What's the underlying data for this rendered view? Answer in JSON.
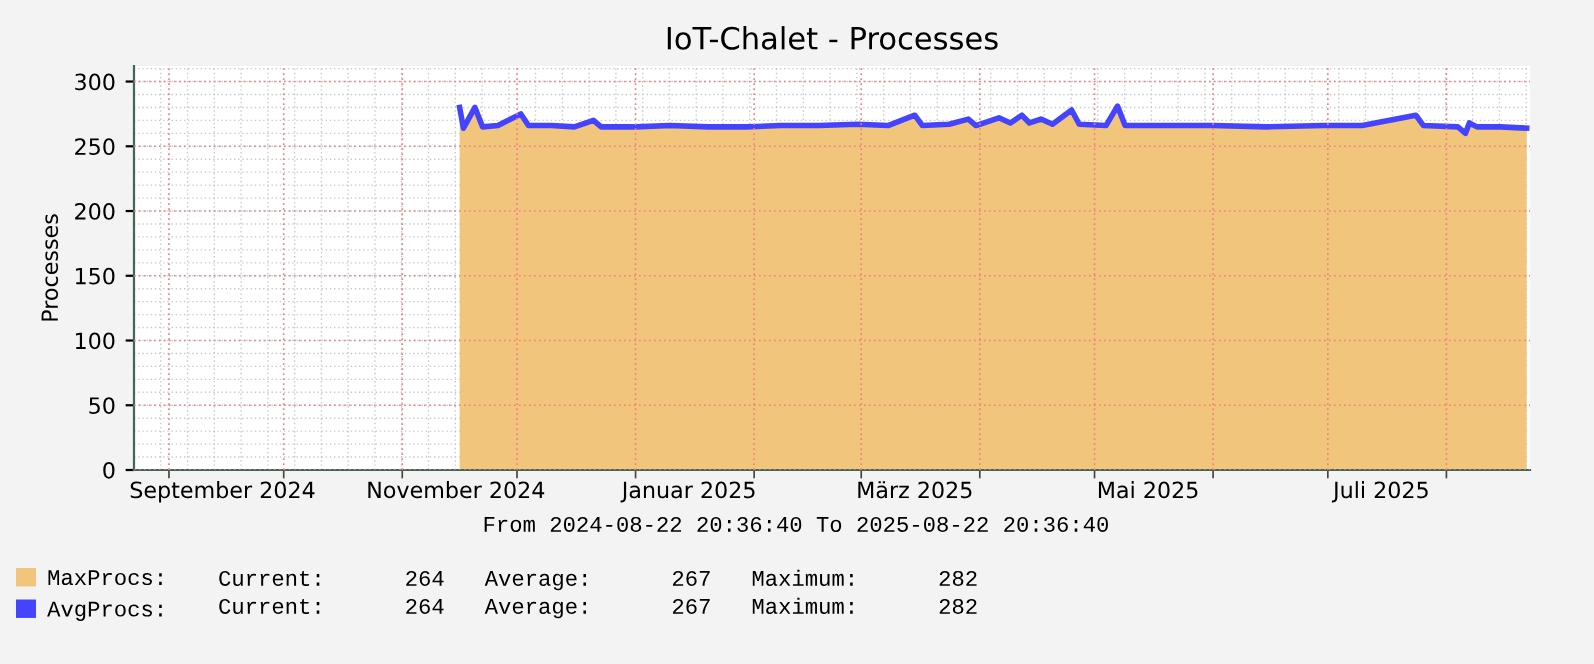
{
  "chart_data": {
    "type": "area",
    "title": "IoT-Chalet - Processes",
    "ylabel": "Processes",
    "x": [
      "2024-11-16",
      "2024-11-17",
      "2024-11-20",
      "2024-11-22",
      "2024-11-26",
      "2024-12-02",
      "2024-12-04",
      "2024-12-10",
      "2024-12-16",
      "2024-12-21",
      "2024-12-23",
      "2025-01-01",
      "2025-01-10",
      "2025-01-20",
      "2025-01-30",
      "2025-02-08",
      "2025-02-18",
      "2025-02-28",
      "2025-03-08",
      "2025-03-15",
      "2025-03-17",
      "2025-03-24",
      "2025-03-29",
      "2025-03-31",
      "2025-04-06",
      "2025-04-09",
      "2025-04-12",
      "2025-04-14",
      "2025-04-17",
      "2025-04-20",
      "2025-04-25",
      "2025-04-27",
      "2025-05-04",
      "2025-05-07",
      "2025-05-09",
      "2025-05-20",
      "2025-06-01",
      "2025-06-15",
      "2025-06-30",
      "2025-07-10",
      "2025-07-24",
      "2025-07-26",
      "2025-08-04",
      "2025-08-06",
      "2025-08-07",
      "2025-08-09",
      "2025-08-15",
      "2025-08-22"
    ],
    "series": [
      {
        "name": "MaxProcs:",
        "color": "#f2c57c",
        "values": [
          280,
          264,
          280,
          265,
          266,
          275,
          266,
          266,
          265,
          270,
          265,
          265,
          266,
          265,
          265,
          266,
          266,
          267,
          266,
          274,
          266,
          267,
          271,
          266,
          272,
          268,
          274,
          268,
          271,
          267,
          278,
          267,
          266,
          281,
          266,
          266,
          266,
          265,
          266,
          266,
          274,
          266,
          265,
          260,
          268,
          265,
          265,
          264
        ]
      },
      {
        "name": "AvgProcs:",
        "type": "line",
        "color": "#4444ff",
        "values": [
          280,
          264,
          280,
          265,
          266,
          275,
          266,
          266,
          265,
          270,
          265,
          265,
          266,
          265,
          265,
          266,
          266,
          267,
          266,
          274,
          266,
          267,
          271,
          266,
          272,
          268,
          274,
          268,
          271,
          267,
          278,
          267,
          266,
          281,
          266,
          266,
          266,
          265,
          266,
          266,
          274,
          266,
          265,
          260,
          268,
          265,
          265,
          264
        ]
      }
    ],
    "xlim": [
      "2024-08-22T20:36",
      "2025-08-22T20:36"
    ],
    "xticks": [
      {
        "value": "2024-09-15",
        "label": "September 2024"
      },
      {
        "value": "2024-11-15",
        "label": "November 2024"
      },
      {
        "value": "2025-01-15",
        "label": "Januar 2025"
      },
      {
        "value": "2025-03-15",
        "label": "März 2025"
      },
      {
        "value": "2025-05-15",
        "label": "Mai 2025"
      },
      {
        "value": "2025-07-15",
        "label": "Juli 2025"
      },
      {
        "value": "2024-09-01",
        "label": null
      },
      {
        "value": "2024-10-01",
        "label": null
      },
      {
        "value": "2024-11-01",
        "label": null
      },
      {
        "value": "2024-12-01",
        "label": null
      },
      {
        "value": "2025-01-01",
        "label": null
      },
      {
        "value": "2025-02-01",
        "label": null
      },
      {
        "value": "2025-03-01",
        "label": null
      },
      {
        "value": "2025-04-01",
        "label": null
      },
      {
        "value": "2025-05-01",
        "label": null
      },
      {
        "value": "2025-06-01",
        "label": null
      },
      {
        "value": "2025-07-01",
        "label": null
      },
      {
        "value": "2025-08-01",
        "label": null
      }
    ],
    "ylim": [
      0,
      312
    ],
    "yticks": [
      0,
      50,
      100,
      150,
      200,
      250,
      300
    ],
    "grid": true,
    "legend": "bottom",
    "annotations": [
      "From 2024-08-22 20:36:40 To 2025-08-22 20:36:40",
      "Current:      264   Average:      267   Maximum:      282",
      "Current:      264   Average:      267   Maximum:      282"
    ]
  }
}
